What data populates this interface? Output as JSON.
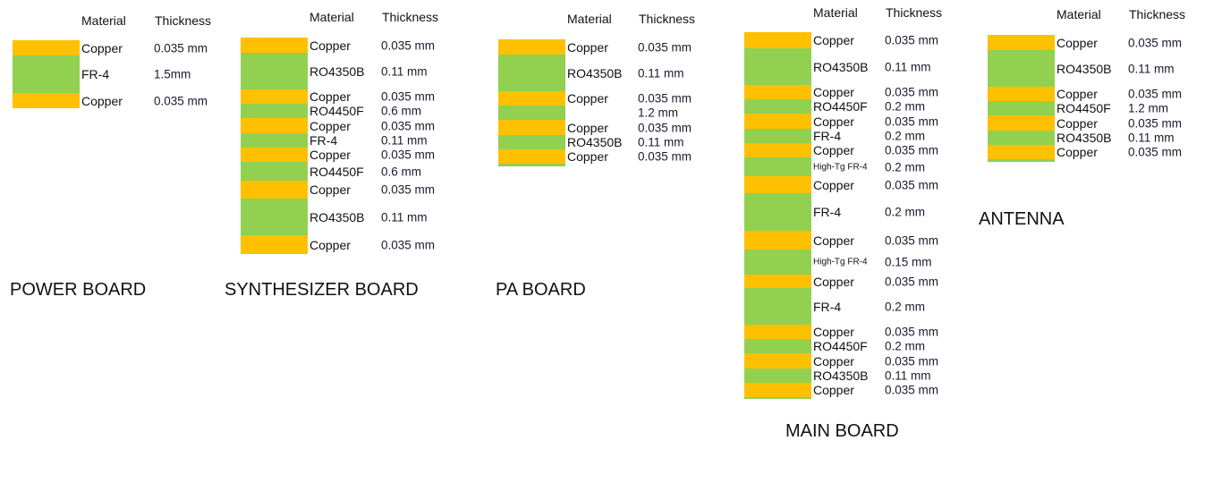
{
  "colors": {
    "copper": "#FFC000",
    "dielectric": "#92D050"
  },
  "headers": {
    "material": "Material",
    "thickness": "Thickness"
  },
  "boards": [
    {
      "title": "POWER BOARD",
      "layers": [
        {
          "type": "copper",
          "material": "Copper",
          "thickness": "0.035 mm"
        },
        {
          "type": "dielectric",
          "material": "FR-4",
          "thickness": "1.5mm"
        },
        {
          "type": "copper",
          "material": "Copper",
          "thickness": "0.035 mm"
        }
      ]
    },
    {
      "title": "SYNTHESIZER BOARD",
      "layers": [
        {
          "type": "copper",
          "material": "Copper",
          "thickness": "0.035 mm"
        },
        {
          "type": "dielectric",
          "material": "RO4350B",
          "thickness": "0.11 mm"
        },
        {
          "type": "copper",
          "material": "Copper",
          "thickness": "0.035 mm"
        },
        {
          "type": "dielectric",
          "material": "RO4450F",
          "thickness": "0.6 mm"
        },
        {
          "type": "copper",
          "material": "Copper",
          "thickness": "0.035 mm"
        },
        {
          "type": "dielectric",
          "material": "FR-4",
          "thickness": "0.11 mm"
        },
        {
          "type": "copper",
          "material": "Copper",
          "thickness": "0.035 mm"
        },
        {
          "type": "dielectric",
          "material": "RO4450F",
          "thickness": "0.6 mm"
        },
        {
          "type": "copper",
          "material": "Copper",
          "thickness": "0.035 mm"
        },
        {
          "type": "dielectric",
          "material": "RO4350B",
          "thickness": "0.11 mm"
        },
        {
          "type": "copper",
          "material": "Copper",
          "thickness": "0.035 mm"
        }
      ]
    },
    {
      "title": "PA BOARD",
      "layers": [
        {
          "type": "copper",
          "material": "Copper",
          "thickness": "0.035 mm"
        },
        {
          "type": "dielectric",
          "material": "RO4350B",
          "thickness": "0.11 mm"
        },
        {
          "type": "copper",
          "material": "Copper",
          "thickness": "0.035 mm"
        },
        {
          "type": "dielectric",
          "material": "",
          "thickness": "1.2 mm"
        },
        {
          "type": "copper",
          "material": "Copper",
          "thickness": "0.035 mm"
        },
        {
          "type": "dielectric",
          "material": "RO4350B",
          "thickness": "0.11 mm"
        },
        {
          "type": "copper",
          "material": "Copper",
          "thickness": "0.035 mm"
        }
      ]
    },
    {
      "title": "MAIN BOARD",
      "layers": [
        {
          "type": "copper",
          "material": "Copper",
          "thickness": "0.035 mm"
        },
        {
          "type": "dielectric",
          "material": "RO4350B",
          "thickness": "0.11 mm"
        },
        {
          "type": "copper",
          "material": "Copper",
          "thickness": "0.035  mm"
        },
        {
          "type": "dielectric",
          "material": "RO4450F",
          "thickness": "0.2 mm"
        },
        {
          "type": "copper",
          "material": "Copper",
          "thickness": "0.035 mm"
        },
        {
          "type": "dielectric",
          "material": "FR-4",
          "thickness": "0.2 mm"
        },
        {
          "type": "copper",
          "material": "Copper",
          "thickness": "0.035 mm"
        },
        {
          "type": "dielectric",
          "material": "High-Tg FR-4",
          "thickness": "0.2 mm"
        },
        {
          "type": "copper",
          "material": "Copper",
          "thickness": "0.035 mm"
        },
        {
          "type": "dielectric",
          "material": "FR-4",
          "thickness": "0.2 mm"
        },
        {
          "type": "copper",
          "material": "Copper",
          "thickness": "0.035 mm"
        },
        {
          "type": "dielectric",
          "material": "High-Tg FR-4",
          "thickness": "0.15 mm"
        },
        {
          "type": "copper",
          "material": "Copper",
          "thickness": "0.035 mm"
        },
        {
          "type": "dielectric",
          "material": "FR-4",
          "thickness": "0.2 mm"
        },
        {
          "type": "copper",
          "material": "Copper",
          "thickness": "0.035 mm"
        },
        {
          "type": "dielectric",
          "material": "RO4450F",
          "thickness": "0.2 mm"
        },
        {
          "type": "copper",
          "material": "Copper",
          "thickness": "0.035 mm"
        },
        {
          "type": "dielectric",
          "material": "RO4350B",
          "thickness": "0.11 mm"
        },
        {
          "type": "copper",
          "material": "Copper",
          "thickness": "0.035 mm"
        }
      ]
    },
    {
      "title": "ANTENNA",
      "layers": [
        {
          "type": "copper",
          "material": "Copper",
          "thickness": "0.035 mm"
        },
        {
          "type": "dielectric",
          "material": "RO4350B",
          "thickness": "0.11 mm"
        },
        {
          "type": "copper",
          "material": "Copper",
          "thickness": "0.035 mm"
        },
        {
          "type": "dielectric",
          "material": "RO4450F",
          "thickness": "1.2 mm"
        },
        {
          "type": "copper",
          "material": "Copper",
          "thickness": "0.035 mm"
        },
        {
          "type": "dielectric",
          "material": "RO4350B",
          "thickness": "0.11 mm"
        },
        {
          "type": "copper",
          "material": "Copper",
          "thickness": "0.035 mm"
        }
      ]
    }
  ]
}
